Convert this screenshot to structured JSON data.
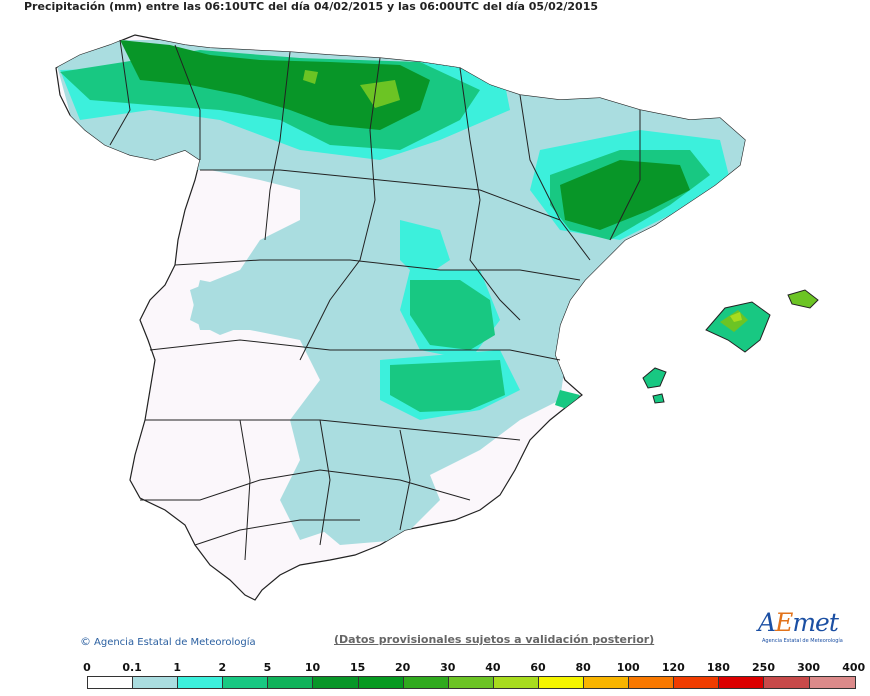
{
  "header": {
    "title": "Precipitación (mm) entre las 06:10UTC del día 04/02/2015 y las 06:00UTC del día 05/02/2015"
  },
  "footer": {
    "copyright_symbol": "©",
    "agency": "Agencia Estatal de Meteorología",
    "disclaimer": "(Datos provisionales sujetos a validación posterior)",
    "logo_a": "A",
    "logo_e": "E",
    "logo_rest": "met",
    "logo_sub": "Agencia Estatal de Meteorología"
  },
  "legend": {
    "labels": [
      "0",
      "0.1",
      "1",
      "2",
      "5",
      "10",
      "15",
      "20",
      "30",
      "40",
      "60",
      "80",
      "100",
      "120",
      "180",
      "250",
      "300",
      "400"
    ],
    "colors": [
      "#ffffff",
      "#aadde0",
      "#3cf0dc",
      "#18c882",
      "#10b25a",
      "#089628",
      "#069a20",
      "#30aa1e",
      "#6cc424",
      "#a8dc1e",
      "#f4f400",
      "#f8b400",
      "#f87800",
      "#f03c00",
      "#dc0000",
      "#c84a4a",
      "#dc8a8a",
      "#f0c0c0"
    ]
  },
  "map": {
    "colors": {
      "land": "#fbf7fb",
      "sea": "#ffffff",
      "light_rain": "#aadde0",
      "cyan_rain": "#3cf0dc",
      "green_rain": "#18c882",
      "dark_green_rain": "#089628",
      "yellow_green_rain": "#a8dc1e",
      "border": "#222222"
    }
  }
}
